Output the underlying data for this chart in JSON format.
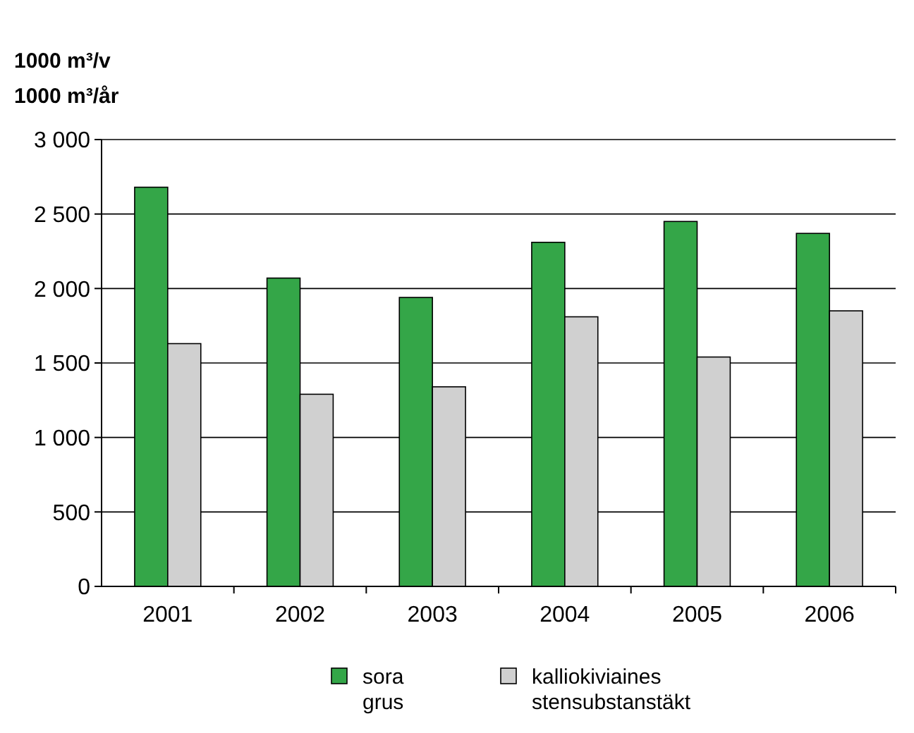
{
  "chart_data": {
    "type": "bar",
    "ylabel": "1000 m³/v\n1000 m³/år",
    "categories": [
      "2001",
      "2002",
      "2003",
      "2004",
      "2005",
      "2006"
    ],
    "series": [
      {
        "name": "sora\ngrus",
        "color": "#34a648",
        "values": [
          2680,
          2070,
          1940,
          2310,
          2450,
          2370
        ]
      },
      {
        "name": "kalliokiviaines\nstensubstanstäkt",
        "color": "#d0d0d0",
        "values": [
          1630,
          1290,
          1340,
          1810,
          1540,
          1850
        ]
      }
    ],
    "ylim": [
      0,
      3000
    ],
    "yticks": [
      0,
      500,
      {
        "value": 1000,
        "label": "1 000"
      },
      {
        "value": 1500,
        "label": "1 500"
      },
      {
        "value": 2000,
        "label": "2 000"
      },
      {
        "value": 2500,
        "label": "2 500"
      },
      {
        "value": 3000,
        "label": "3 000"
      }
    ],
    "grid": "y",
    "legend": "bottom"
  }
}
